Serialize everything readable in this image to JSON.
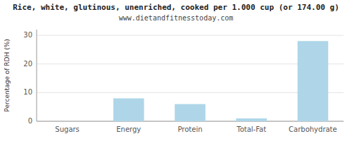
{
  "chart_data": {
    "type": "bar",
    "title": "Rice, white, glutinous, unenriched, cooked per 1.000 cup (or 174.00 g)",
    "subtitle": "www.dietandfitnesstoday.com",
    "categories": [
      "Sugars",
      "Energy",
      "Protein",
      "Total-Fat",
      "Carbohydrate"
    ],
    "values": [
      0.0,
      8.0,
      6.0,
      1.0,
      28.0
    ],
    "color": "#aed6e8",
    "ylabel": "Percentage of RDH (%)",
    "ylim": [
      0,
      32
    ],
    "yticks": [
      0,
      10,
      20,
      30
    ],
    "grid": true
  }
}
